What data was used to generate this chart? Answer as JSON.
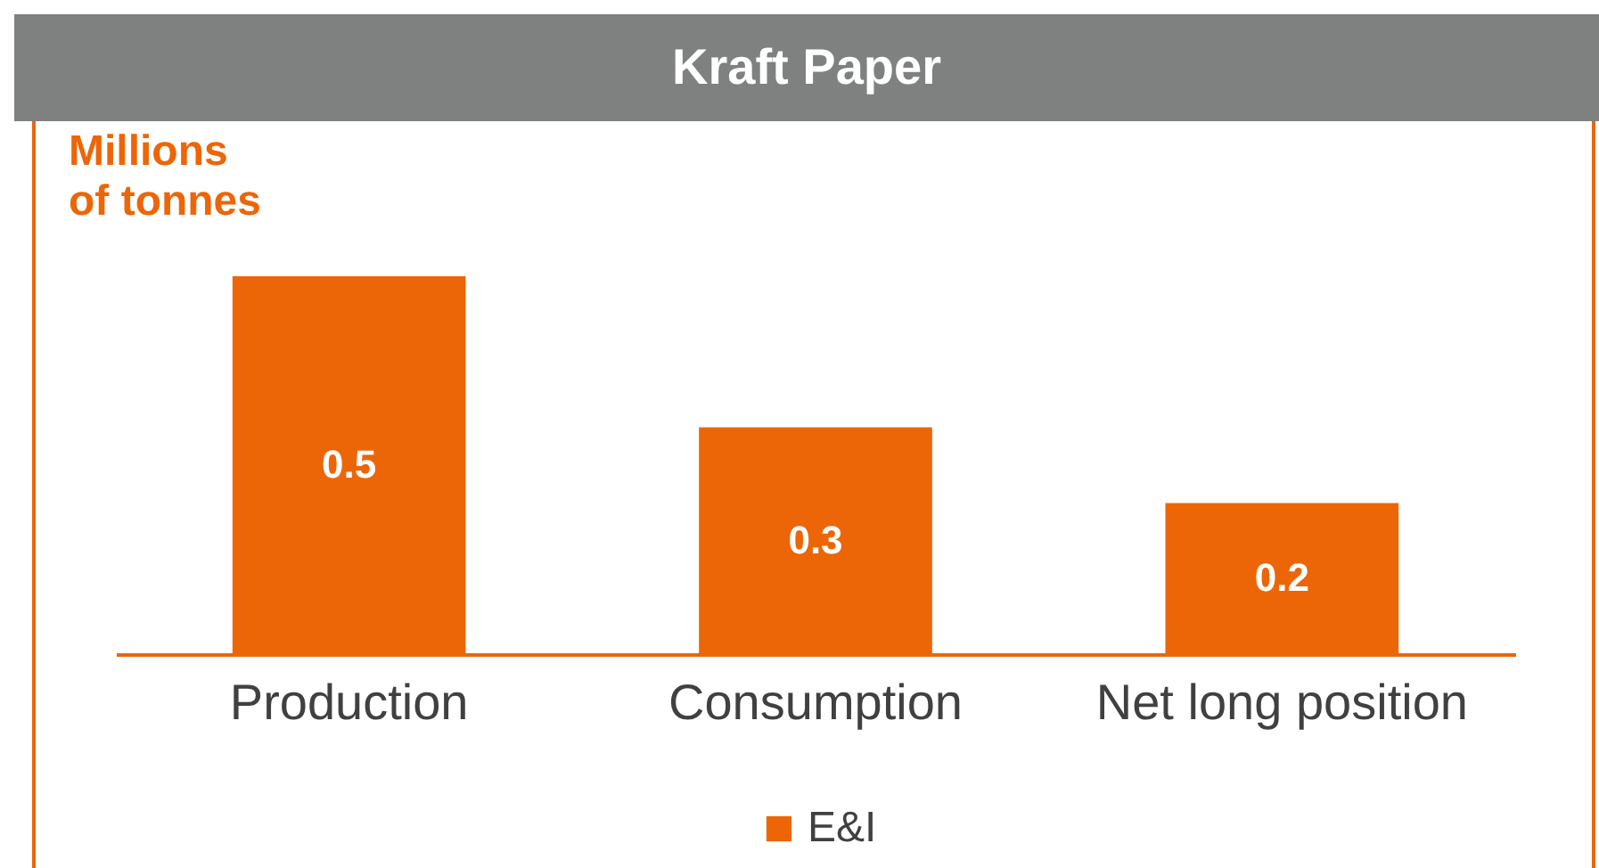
{
  "chart_data": {
    "type": "bar",
    "title": "Kraft Paper",
    "ylabel": "Millions of tonnes",
    "categories": [
      "Production",
      "Consumption",
      "Net long position"
    ],
    "series": [
      {
        "name": "E&I",
        "color": "#ec6608",
        "values": [
          0.5,
          0.3,
          0.2
        ]
      }
    ],
    "data_labels": true,
    "legend": "bottom",
    "grid": false,
    "tick_labels": "x"
  }
}
